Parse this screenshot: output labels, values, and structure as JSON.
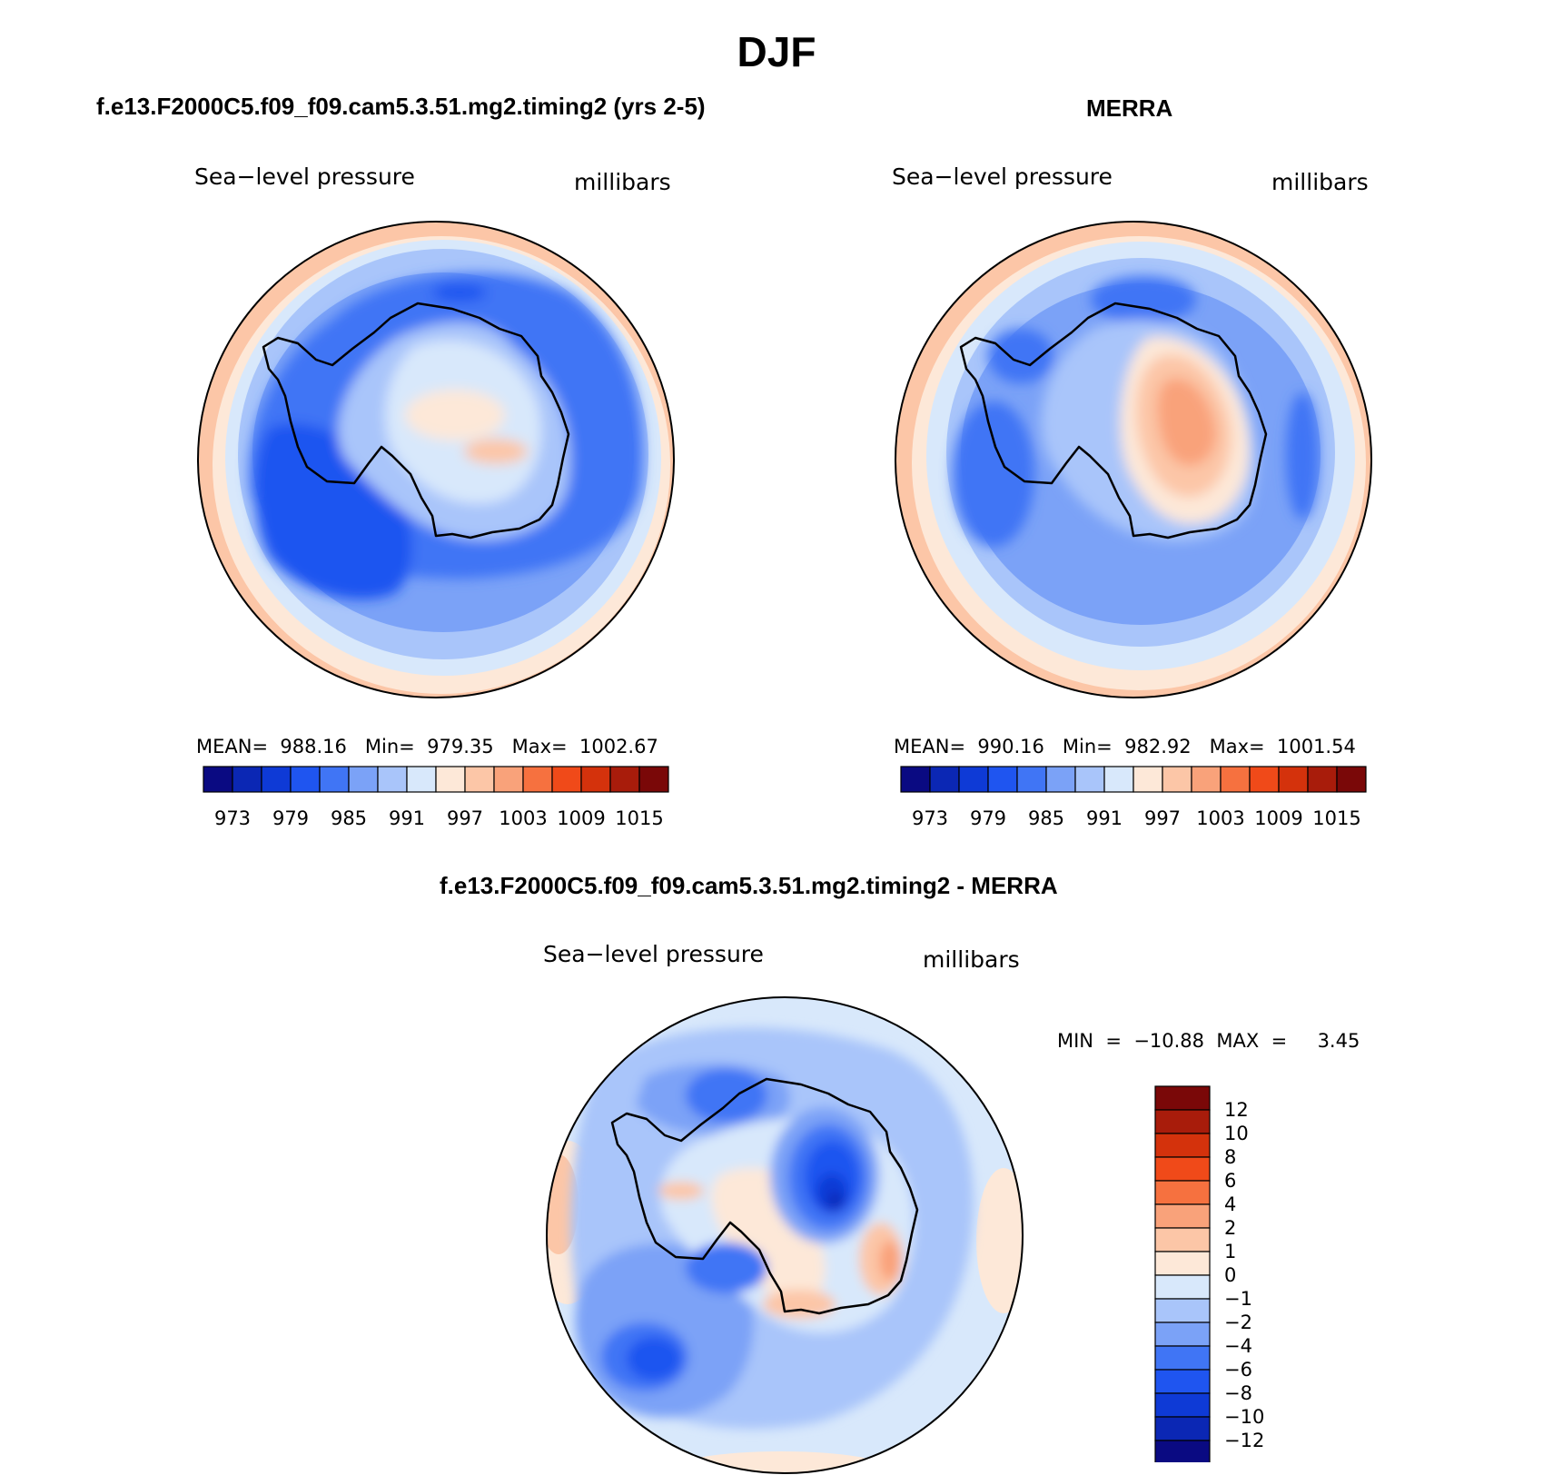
{
  "page_title": "DJF",
  "panels": [
    {
      "title": "f.e13.F2000C5.f09_f09.cam5.3.51.mg2.timing2 (yrs 2-5)",
      "field": "Sea−level pressure",
      "units": "millibars",
      "stats": "MEAN=  988.16   Min=  979.35   Max=  1002.67"
    },
    {
      "title": "MERRA",
      "field": "Sea−level pressure",
      "units": "millibars",
      "stats": "MEAN=  990.16   Min=  982.92   Max=  1001.54"
    },
    {
      "title": "f.e13.F2000C5.f09_f09.cam5.3.51.mg2.timing2 - MERRA",
      "field": "Sea−level pressure",
      "units": "millibars",
      "stats": "MIN  =  −10.88  MAX  =     3.45"
    }
  ],
  "colorbars": {
    "abs": {
      "colors": [
        "#0a0a82",
        "#0b27b4",
        "#0e3ad6",
        "#1f55f0",
        "#4075f5",
        "#7ba2f7",
        "#a9c5fa",
        "#d8e8fb",
        "#fde8d8",
        "#fcc6a7",
        "#f9a27a",
        "#f6713f",
        "#f04a19",
        "#d4320c",
        "#a81c0b",
        "#7a0808"
      ],
      "labels": [
        "973",
        "979",
        "985",
        "991",
        "997",
        "1003",
        "1009",
        "1015"
      ]
    },
    "diff": {
      "colors": [
        "#7a0808",
        "#a81c0b",
        "#d4320c",
        "#f04a19",
        "#f6713f",
        "#f9a27a",
        "#fcc6a7",
        "#fde8d8",
        "#d8e8fb",
        "#a9c5fa",
        "#7ba2f7",
        "#4075f5",
        "#1f55f0",
        "#0e3ad6",
        "#0b27b4",
        "#0a0a82"
      ],
      "labels": [
        "12",
        "10",
        "8",
        "6",
        "4",
        "2",
        "1",
        "0",
        "−1",
        "−2",
        "−4",
        "−6",
        "−8",
        "−10",
        "−12"
      ]
    }
  }
}
